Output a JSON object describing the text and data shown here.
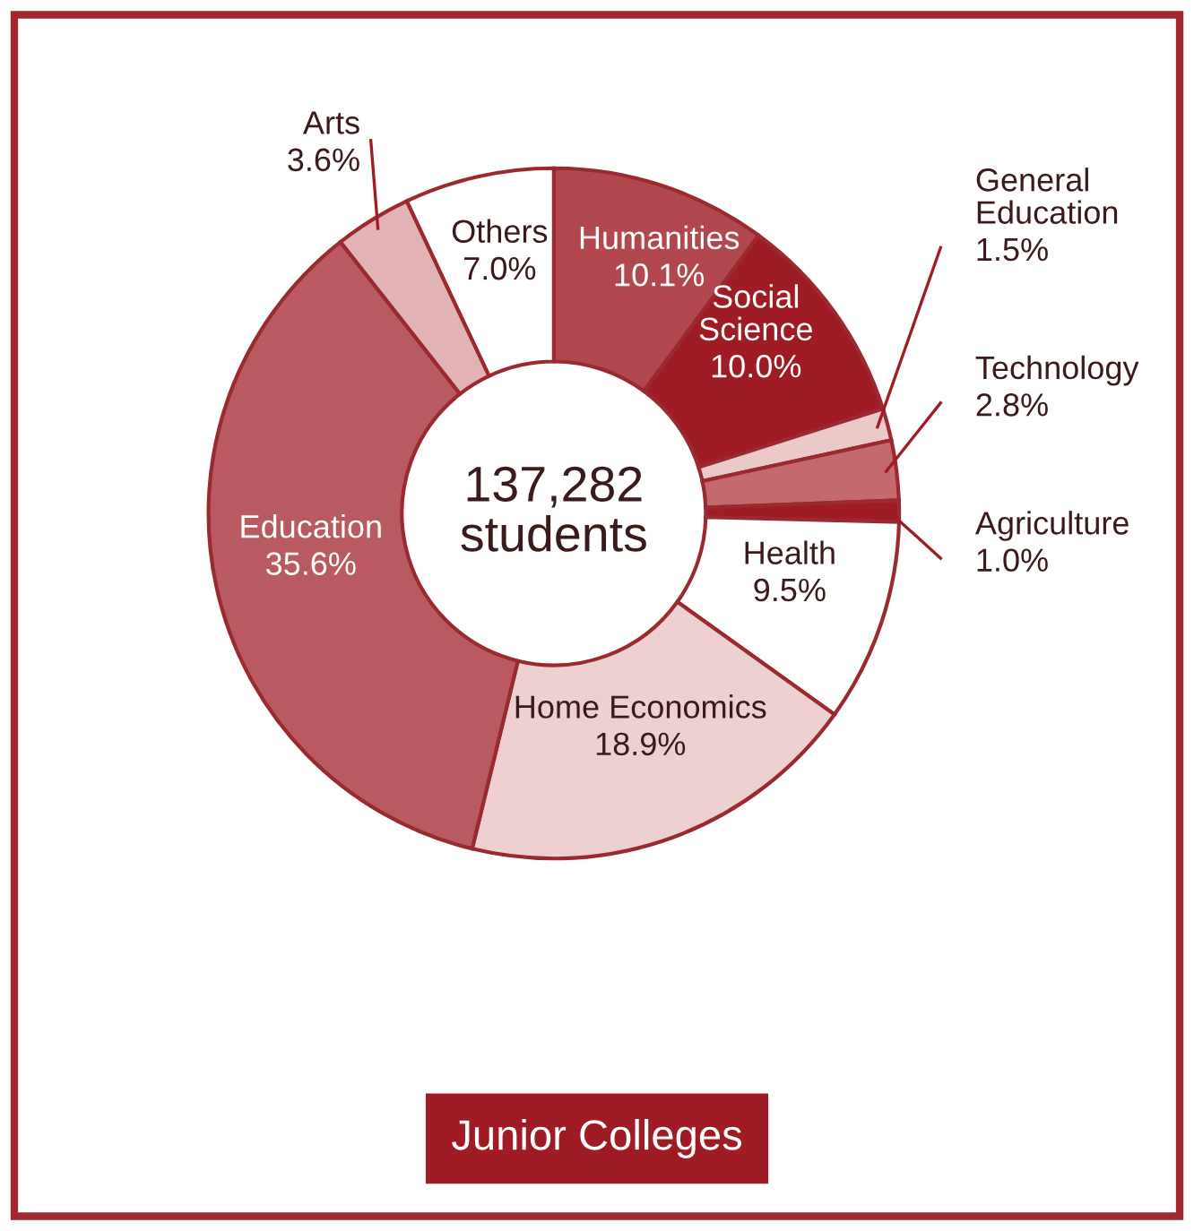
{
  "chart_data": {
    "type": "donut",
    "title": "Junior Colleges",
    "categories": [
      "Humanities",
      "Social\nScience",
      "General\nEducation",
      "Technology",
      "Agriculture",
      "Health",
      "Home Economics",
      "Education",
      "Arts",
      "Others"
    ],
    "values": [
      10.1,
      10.0,
      1.5,
      2.8,
      1.0,
      9.5,
      18.9,
      35.6,
      3.6,
      7.0
    ],
    "colors": [
      "#b3474e",
      "#a01c25",
      "#ecc9c9",
      "#c46a6d",
      "#a01c25",
      "#ffffff",
      "#efd0d0",
      "#b95a60",
      "#e2b3b5",
      "#ffffff"
    ],
    "value_labels": [
      "10.1%",
      "10.0%",
      "1.5%",
      "2.8%",
      "1.0%",
      "9.5%",
      "18.9%",
      "35.6%",
      "3.6%",
      "7.0%"
    ],
    "annotations": [
      "137,282\nstudents"
    ]
  }
}
